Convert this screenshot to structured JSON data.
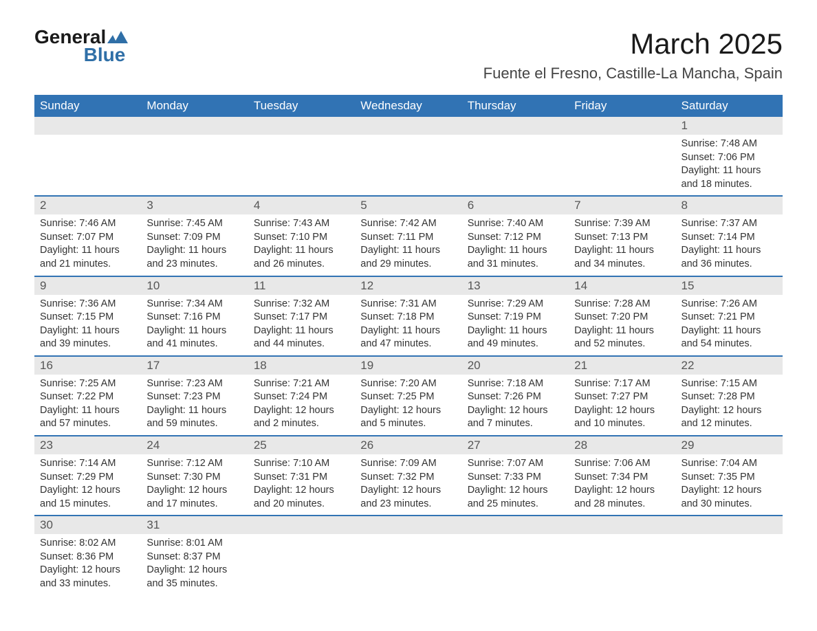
{
  "brand": {
    "name_top": "General",
    "name_bottom": "Blue",
    "text_color": "#1a1a1a",
    "accent_color": "#2f6fa7"
  },
  "title": "March 2025",
  "location": "Fuente el Fresno, Castille-La Mancha, Spain",
  "colors": {
    "header_bg": "#3173b4",
    "header_text": "#ffffff",
    "daynum_bg": "#e8e8e8",
    "row_border": "#3173b4",
    "body_text": "#333333",
    "page_bg": "#ffffff"
  },
  "dayHeaders": [
    "Sunday",
    "Monday",
    "Tuesday",
    "Wednesday",
    "Thursday",
    "Friday",
    "Saturday"
  ],
  "weeks": [
    [
      null,
      null,
      null,
      null,
      null,
      null,
      {
        "n": "1",
        "sunrise": "Sunrise: 7:48 AM",
        "sunset": "Sunset: 7:06 PM",
        "day1": "Daylight: 11 hours",
        "day2": "and 18 minutes."
      }
    ],
    [
      {
        "n": "2",
        "sunrise": "Sunrise: 7:46 AM",
        "sunset": "Sunset: 7:07 PM",
        "day1": "Daylight: 11 hours",
        "day2": "and 21 minutes."
      },
      {
        "n": "3",
        "sunrise": "Sunrise: 7:45 AM",
        "sunset": "Sunset: 7:09 PM",
        "day1": "Daylight: 11 hours",
        "day2": "and 23 minutes."
      },
      {
        "n": "4",
        "sunrise": "Sunrise: 7:43 AM",
        "sunset": "Sunset: 7:10 PM",
        "day1": "Daylight: 11 hours",
        "day2": "and 26 minutes."
      },
      {
        "n": "5",
        "sunrise": "Sunrise: 7:42 AM",
        "sunset": "Sunset: 7:11 PM",
        "day1": "Daylight: 11 hours",
        "day2": "and 29 minutes."
      },
      {
        "n": "6",
        "sunrise": "Sunrise: 7:40 AM",
        "sunset": "Sunset: 7:12 PM",
        "day1": "Daylight: 11 hours",
        "day2": "and 31 minutes."
      },
      {
        "n": "7",
        "sunrise": "Sunrise: 7:39 AM",
        "sunset": "Sunset: 7:13 PM",
        "day1": "Daylight: 11 hours",
        "day2": "and 34 minutes."
      },
      {
        "n": "8",
        "sunrise": "Sunrise: 7:37 AM",
        "sunset": "Sunset: 7:14 PM",
        "day1": "Daylight: 11 hours",
        "day2": "and 36 minutes."
      }
    ],
    [
      {
        "n": "9",
        "sunrise": "Sunrise: 7:36 AM",
        "sunset": "Sunset: 7:15 PM",
        "day1": "Daylight: 11 hours",
        "day2": "and 39 minutes."
      },
      {
        "n": "10",
        "sunrise": "Sunrise: 7:34 AM",
        "sunset": "Sunset: 7:16 PM",
        "day1": "Daylight: 11 hours",
        "day2": "and 41 minutes."
      },
      {
        "n": "11",
        "sunrise": "Sunrise: 7:32 AM",
        "sunset": "Sunset: 7:17 PM",
        "day1": "Daylight: 11 hours",
        "day2": "and 44 minutes."
      },
      {
        "n": "12",
        "sunrise": "Sunrise: 7:31 AM",
        "sunset": "Sunset: 7:18 PM",
        "day1": "Daylight: 11 hours",
        "day2": "and 47 minutes."
      },
      {
        "n": "13",
        "sunrise": "Sunrise: 7:29 AM",
        "sunset": "Sunset: 7:19 PM",
        "day1": "Daylight: 11 hours",
        "day2": "and 49 minutes."
      },
      {
        "n": "14",
        "sunrise": "Sunrise: 7:28 AM",
        "sunset": "Sunset: 7:20 PM",
        "day1": "Daylight: 11 hours",
        "day2": "and 52 minutes."
      },
      {
        "n": "15",
        "sunrise": "Sunrise: 7:26 AM",
        "sunset": "Sunset: 7:21 PM",
        "day1": "Daylight: 11 hours",
        "day2": "and 54 minutes."
      }
    ],
    [
      {
        "n": "16",
        "sunrise": "Sunrise: 7:25 AM",
        "sunset": "Sunset: 7:22 PM",
        "day1": "Daylight: 11 hours",
        "day2": "and 57 minutes."
      },
      {
        "n": "17",
        "sunrise": "Sunrise: 7:23 AM",
        "sunset": "Sunset: 7:23 PM",
        "day1": "Daylight: 11 hours",
        "day2": "and 59 minutes."
      },
      {
        "n": "18",
        "sunrise": "Sunrise: 7:21 AM",
        "sunset": "Sunset: 7:24 PM",
        "day1": "Daylight: 12 hours",
        "day2": "and 2 minutes."
      },
      {
        "n": "19",
        "sunrise": "Sunrise: 7:20 AM",
        "sunset": "Sunset: 7:25 PM",
        "day1": "Daylight: 12 hours",
        "day2": "and 5 minutes."
      },
      {
        "n": "20",
        "sunrise": "Sunrise: 7:18 AM",
        "sunset": "Sunset: 7:26 PM",
        "day1": "Daylight: 12 hours",
        "day2": "and 7 minutes."
      },
      {
        "n": "21",
        "sunrise": "Sunrise: 7:17 AM",
        "sunset": "Sunset: 7:27 PM",
        "day1": "Daylight: 12 hours",
        "day2": "and 10 minutes."
      },
      {
        "n": "22",
        "sunrise": "Sunrise: 7:15 AM",
        "sunset": "Sunset: 7:28 PM",
        "day1": "Daylight: 12 hours",
        "day2": "and 12 minutes."
      }
    ],
    [
      {
        "n": "23",
        "sunrise": "Sunrise: 7:14 AM",
        "sunset": "Sunset: 7:29 PM",
        "day1": "Daylight: 12 hours",
        "day2": "and 15 minutes."
      },
      {
        "n": "24",
        "sunrise": "Sunrise: 7:12 AM",
        "sunset": "Sunset: 7:30 PM",
        "day1": "Daylight: 12 hours",
        "day2": "and 17 minutes."
      },
      {
        "n": "25",
        "sunrise": "Sunrise: 7:10 AM",
        "sunset": "Sunset: 7:31 PM",
        "day1": "Daylight: 12 hours",
        "day2": "and 20 minutes."
      },
      {
        "n": "26",
        "sunrise": "Sunrise: 7:09 AM",
        "sunset": "Sunset: 7:32 PM",
        "day1": "Daylight: 12 hours",
        "day2": "and 23 minutes."
      },
      {
        "n": "27",
        "sunrise": "Sunrise: 7:07 AM",
        "sunset": "Sunset: 7:33 PM",
        "day1": "Daylight: 12 hours",
        "day2": "and 25 minutes."
      },
      {
        "n": "28",
        "sunrise": "Sunrise: 7:06 AM",
        "sunset": "Sunset: 7:34 PM",
        "day1": "Daylight: 12 hours",
        "day2": "and 28 minutes."
      },
      {
        "n": "29",
        "sunrise": "Sunrise: 7:04 AM",
        "sunset": "Sunset: 7:35 PM",
        "day1": "Daylight: 12 hours",
        "day2": "and 30 minutes."
      }
    ],
    [
      {
        "n": "30",
        "sunrise": "Sunrise: 8:02 AM",
        "sunset": "Sunset: 8:36 PM",
        "day1": "Daylight: 12 hours",
        "day2": "and 33 minutes."
      },
      {
        "n": "31",
        "sunrise": "Sunrise: 8:01 AM",
        "sunset": "Sunset: 8:37 PM",
        "day1": "Daylight: 12 hours",
        "day2": "and 35 minutes."
      },
      null,
      null,
      null,
      null,
      null
    ]
  ]
}
